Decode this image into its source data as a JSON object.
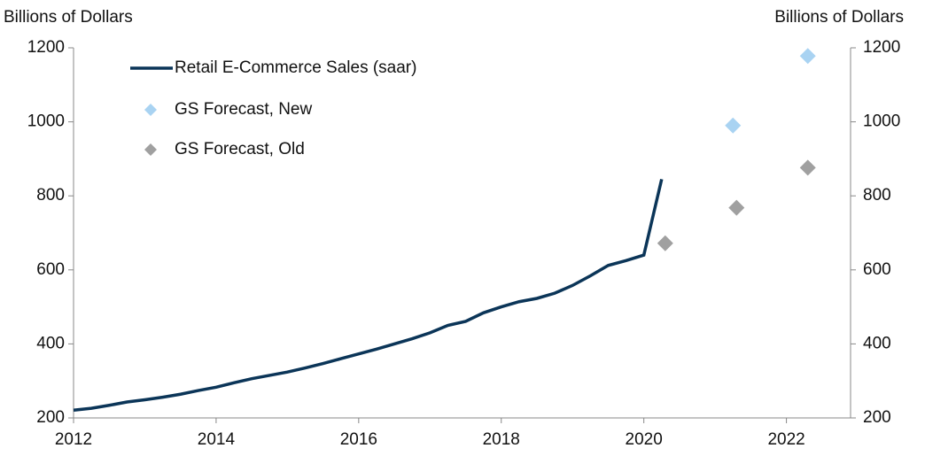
{
  "chart_data": {
    "type": "line",
    "ylabel": "Billions of Dollars",
    "y2label": "Billions of Dollars",
    "xlim": [
      2012,
      2022.9
    ],
    "xticks": [
      2012,
      2014,
      2016,
      2018,
      2020,
      2022
    ],
    "ylim": [
      200,
      1200
    ],
    "yticks": [
      200,
      400,
      600,
      800,
      1000,
      1200
    ],
    "y2lim": [
      200,
      1200
    ],
    "y2ticks": [
      200,
      400,
      600,
      800,
      1000,
      1200
    ],
    "series": [
      {
        "name": "Retail E-Commerce Sales (saar)",
        "color": "#0b3558",
        "kind": "line",
        "x": [
          2012,
          2012.25,
          2012.5,
          2012.75,
          2013,
          2013.25,
          2013.5,
          2013.75,
          2014,
          2014.25,
          2014.5,
          2014.75,
          2015,
          2015.25,
          2015.5,
          2015.75,
          2016,
          2016.25,
          2016.5,
          2016.75,
          2017,
          2017.25,
          2017.5,
          2017.75,
          2018,
          2018.25,
          2018.5,
          2018.75,
          2019,
          2019.25,
          2019.5,
          2019.75,
          2020,
          2020.25
        ],
        "values": [
          221,
          226,
          234,
          243,
          249,
          256,
          264,
          274,
          283,
          295,
          306,
          315,
          324,
          335,
          347,
          360,
          373,
          386,
          400,
          414,
          430,
          450,
          461,
          484,
          500,
          514,
          523,
          537,
          558,
          584,
          612,
          625,
          640,
          845
        ]
      },
      {
        "name": "GS Forecast, New",
        "color": "#a9d3f2",
        "kind": "diamond",
        "x": [
          2021.25,
          2022.3
        ],
        "values": [
          990,
          1178
        ]
      },
      {
        "name": "GS Forecast, Old",
        "color": "#a0a0a0",
        "kind": "diamond",
        "x": [
          2020.3,
          2021.3,
          2022.3
        ],
        "values": [
          672,
          768,
          876
        ]
      }
    ]
  }
}
